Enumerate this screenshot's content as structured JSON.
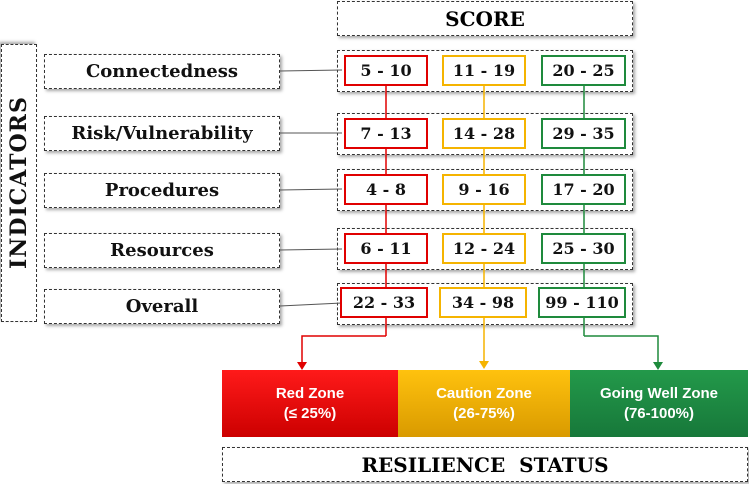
{
  "header": {
    "score_label": "SCORE"
  },
  "side_label": "INDICATORS",
  "indicators": [
    "Connectedness",
    "Risk/Vulnerability",
    "Procedures",
    "Resources",
    "Overall"
  ],
  "scores": [
    [
      "5 - 10",
      "11 - 19",
      "20 - 25"
    ],
    [
      "7 - 13",
      "14 - 28",
      "29 - 35"
    ],
    [
      "4 - 8",
      "9 - 16",
      "17 - 20"
    ],
    [
      "6 - 11",
      "12 - 24",
      "25 - 30"
    ],
    [
      "22 - 33",
      "34 - 98",
      "99 - 110"
    ]
  ],
  "zones": [
    {
      "name": "Red Zone",
      "range": "(≤ 25%)"
    },
    {
      "name": "Caution Zone",
      "range": "(26-75%)"
    },
    {
      "name": "Going Well Zone",
      "range": "(76-100%)"
    }
  ],
  "footer": {
    "status_label": "RESILIENCE  STATUS"
  },
  "colors": {
    "red": "#e00000",
    "caution": "#f5b400",
    "green": "#1e8a3c"
  }
}
